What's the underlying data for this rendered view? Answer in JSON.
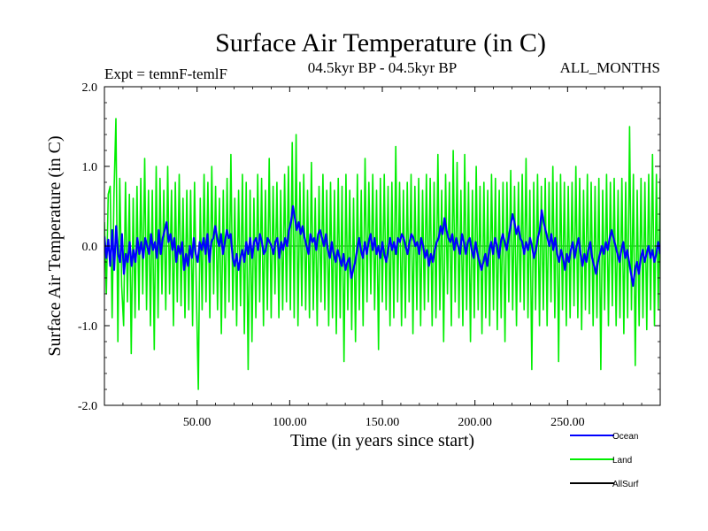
{
  "chart_data": {
    "type": "line",
    "title": "Surface Air Temperature (in C)",
    "subtitle_left": "Expt = temnF-temlF",
    "subtitle_center": "04.5kyr BP - 04.5kyr BP",
    "subtitle_right": "ALL_MONTHS",
    "xlabel": "Time (in years since start)",
    "ylabel": "Surface Air Temperature (in C)",
    "xlim": [
      0,
      300
    ],
    "ylim": [
      -2.0,
      2.0
    ],
    "x_ticks": [
      50,
      100,
      150,
      200,
      250
    ],
    "x_tick_labels": [
      "50.00",
      "100.00",
      "150.00",
      "200.00",
      "250.00"
    ],
    "y_ticks": [
      -2.0,
      -1.0,
      0.0,
      1.0,
      2.0
    ],
    "y_tick_labels": [
      "-2.0",
      "-1.0",
      "0.0",
      "1.0",
      "2.0"
    ],
    "series": [
      {
        "name": "Land",
        "color": "#00ee00",
        "values": [
          0.3,
          -0.6,
          0.65,
          0.75,
          -0.9,
          0.65,
          1.6,
          -1.2,
          0.85,
          -0.5,
          -1.0,
          0.8,
          -0.7,
          0.65,
          -1.35,
          0.6,
          -0.9,
          0.75,
          -0.8,
          0.85,
          -0.6,
          1.1,
          -0.8,
          0.7,
          -1.0,
          0.7,
          -1.3,
          1.0,
          -0.9,
          0.85,
          -0.6,
          0.7,
          -0.8,
          1.0,
          -0.6,
          0.7,
          -1.0,
          0.8,
          -0.7,
          0.9,
          -0.75,
          0.6,
          -0.9,
          0.7,
          -0.8,
          0.7,
          -1.0,
          0.8,
          -0.6,
          -1.8,
          0.6,
          -0.8,
          0.9,
          -0.7,
          0.8,
          -0.9,
          1.0,
          -0.6,
          0.75,
          -0.8,
          0.6,
          -1.1,
          0.7,
          -0.9,
          0.85,
          -0.7,
          1.15,
          -0.8,
          0.6,
          -1.0,
          0.7,
          -0.75,
          0.9,
          -1.1,
          0.8,
          -1.55,
          0.7,
          -1.2,
          0.6,
          -0.9,
          0.9,
          -0.7,
          0.85,
          -1.0,
          0.7,
          -0.8,
          1.1,
          -0.9,
          0.75,
          -0.6,
          0.8,
          -0.9,
          0.7,
          -0.8,
          0.9,
          -0.7,
          1.0,
          -0.8,
          1.3,
          -0.9,
          1.4,
          -1.0,
          0.8,
          -0.75,
          0.9,
          -0.8,
          0.7,
          -0.9,
          1.05,
          -0.8,
          0.6,
          -1.0,
          0.75,
          -0.7,
          0.9,
          -0.8,
          0.7,
          -1.0,
          0.8,
          -0.9,
          0.7,
          -1.1,
          0.85,
          -0.9,
          0.75,
          -1.45,
          0.9,
          -0.8,
          0.7,
          -1.05,
          0.6,
          -1.2,
          0.9,
          -0.8,
          0.7,
          -1.0,
          1.1,
          -0.7,
          0.8,
          -0.6,
          0.9,
          -0.8,
          0.7,
          -1.3,
          0.85,
          -0.7,
          0.9,
          -0.8,
          0.75,
          -1.0,
          0.8,
          -0.9,
          1.25,
          -0.7,
          0.8,
          -1.0,
          0.7,
          -0.9,
          0.8,
          -0.7,
          0.9,
          -1.1,
          0.75,
          -0.8,
          0.85,
          -1.0,
          0.7,
          -0.8,
          0.9,
          -0.7,
          0.85,
          -1.0,
          0.8,
          -0.9,
          1.15,
          -0.8,
          0.7,
          -1.2,
          0.9,
          -0.6,
          0.8,
          -1.0,
          1.2,
          -0.7,
          1.05,
          -0.9,
          0.7,
          -1.0,
          1.15,
          -0.8,
          0.8,
          -1.2,
          0.7,
          -0.9,
          1.0,
          -0.8,
          0.75,
          -1.1,
          0.8,
          -0.9,
          0.7,
          -1.0,
          0.9,
          -0.8,
          0.85,
          -1.05,
          0.7,
          -0.9,
          0.8,
          -1.2,
          0.8,
          -0.7,
          0.95,
          -0.8,
          0.75,
          -1.0,
          0.8,
          -0.7,
          0.9,
          -0.8,
          1.1,
          -0.9,
          0.7,
          -1.55,
          0.8,
          -0.8,
          0.9,
          -1.0,
          0.75,
          -0.8,
          0.85,
          -1.0,
          0.8,
          -0.7,
          1.0,
          -0.9,
          0.8,
          -1.45,
          0.9,
          -0.8,
          0.8,
          -1.0,
          0.75,
          -0.9,
          0.8,
          -0.75,
          1.0,
          -0.9,
          0.85,
          -1.05,
          0.7,
          -0.8,
          0.9,
          -0.85,
          0.8,
          -1.0,
          0.75,
          -0.9,
          0.85,
          -1.55,
          0.7,
          -0.8,
          0.9,
          -1.0,
          0.8,
          -0.75,
          0.85,
          -1.0,
          0.7,
          -0.9,
          0.85,
          -1.1,
          0.8,
          -0.9,
          1.5,
          -0.8,
          0.9,
          -1.5,
          0.7,
          -1.0,
          0.85,
          -0.9,
          0.8,
          -1.05,
          0.9,
          -0.8,
          1.15,
          -1.0,
          0.9,
          -0.8,
          0.85
        ]
      },
      {
        "name": "Ocean",
        "color": "#0000ff",
        "values": [
          0.12,
          -0.15,
          0.08,
          -0.25,
          0.2,
          -0.3,
          0.25,
          -0.1,
          -0.2,
          0.15,
          -0.35,
          -0.1,
          -0.2,
          0.05,
          -0.25,
          -0.05,
          -0.2,
          0.1,
          -0.1,
          0.05,
          -0.15,
          0.1,
          0.0,
          -0.1,
          0.15,
          -0.05,
          0.05,
          -0.15,
          0.2,
          -0.1,
          0.1,
          0.2,
          0.3,
          0.05,
          0.15,
          -0.05,
          0.1,
          -0.2,
          0.0,
          -0.1,
          0.05,
          -0.3,
          -0.1,
          -0.25,
          0.0,
          -0.15,
          0.1,
          -0.1,
          -0.2,
          0.05,
          -0.05,
          0.1,
          -0.1,
          0.15,
          -0.2,
          0.05,
          0.1,
          0.25,
          0.1,
          0.0,
          0.15,
          -0.1,
          0.05,
          0.2,
          0.1,
          0.15,
          -0.15,
          -0.25,
          -0.1,
          -0.3,
          -0.15,
          -0.05,
          -0.2,
          0.05,
          -0.1,
          0.1,
          -0.15,
          0.05,
          0.1,
          -0.05,
          0.15,
          0.05,
          -0.1,
          -0.05,
          0.1,
          0.05,
          0.0,
          -0.1,
          0.05,
          0.1,
          -0.15,
          0.05,
          -0.05,
          0.1,
          0.0,
          0.2,
          0.3,
          0.5,
          0.35,
          0.2,
          0.3,
          0.15,
          0.25,
          0.1,
          0.0,
          -0.1,
          0.15,
          0.05,
          0.1,
          -0.05,
          0.15,
          0.2,
          0.1,
          0.0,
          0.15,
          -0.05,
          -0.15,
          0.05,
          -0.1,
          -0.2,
          -0.05,
          -0.15,
          -0.25,
          -0.1,
          -0.3,
          -0.2,
          -0.15,
          -0.4,
          -0.3,
          -0.2,
          -0.05,
          0.1,
          -0.05,
          -0.15,
          0.05,
          -0.1,
          0.05,
          0.15,
          -0.05,
          0.1,
          -0.1,
          0.0,
          -0.15,
          0.05,
          -0.1,
          -0.2,
          -0.05,
          0.1,
          -0.05,
          0.05,
          -0.1,
          0.1,
          0.05,
          0.15,
          0.1,
          0.0,
          -0.1,
          0.05,
          0.15,
          0.1,
          0.0,
          0.05,
          -0.1,
          0.1,
          0.0,
          -0.15,
          -0.05,
          -0.25,
          -0.1,
          -0.2,
          -0.05,
          0.05,
          0.1,
          0.25,
          0.15,
          0.35,
          0.2,
          0.1,
          0.05,
          0.15,
          -0.05,
          0.1,
          0.0,
          -0.1,
          0.15,
          0.05,
          -0.1,
          0.05,
          0.1,
          -0.05,
          -0.15,
          0.05,
          -0.1,
          -0.2,
          -0.3,
          -0.2,
          -0.1,
          -0.25,
          -0.05,
          0.05,
          -0.1,
          0.1,
          0.0,
          -0.15,
          0.05,
          0.15,
          0.05,
          -0.05,
          0.1,
          0.25,
          0.4,
          0.3,
          0.15,
          0.25,
          0.1,
          0.05,
          -0.1,
          0.05,
          -0.05,
          0.1,
          0.0,
          -0.15,
          -0.05,
          0.1,
          0.2,
          0.45,
          0.3,
          0.2,
          0.1,
          0.0,
          0.15,
          -0.05,
          0.1,
          -0.1,
          -0.2,
          -0.05,
          -0.15,
          -0.3,
          -0.1,
          -0.2,
          -0.05,
          0.05,
          -0.15,
          0.0,
          0.1,
          -0.1,
          -0.25,
          -0.1,
          -0.2,
          -0.05,
          0.05,
          -0.15,
          -0.25,
          -0.35,
          -0.2,
          -0.1,
          0.0,
          -0.1,
          0.05,
          -0.05,
          0.1,
          0.2,
          0.1,
          0.0,
          -0.1,
          -0.2,
          -0.05,
          0.05,
          -0.15,
          -0.05,
          -0.2,
          -0.35,
          -0.5,
          -0.3,
          -0.2,
          -0.35,
          -0.15,
          -0.05,
          -0.2,
          -0.1,
          0.0,
          -0.15,
          -0.05,
          -0.2,
          -0.1,
          0.05,
          -0.1
        ]
      },
      {
        "name": "AllSurf",
        "color": "#000000",
        "values": []
      }
    ]
  }
}
